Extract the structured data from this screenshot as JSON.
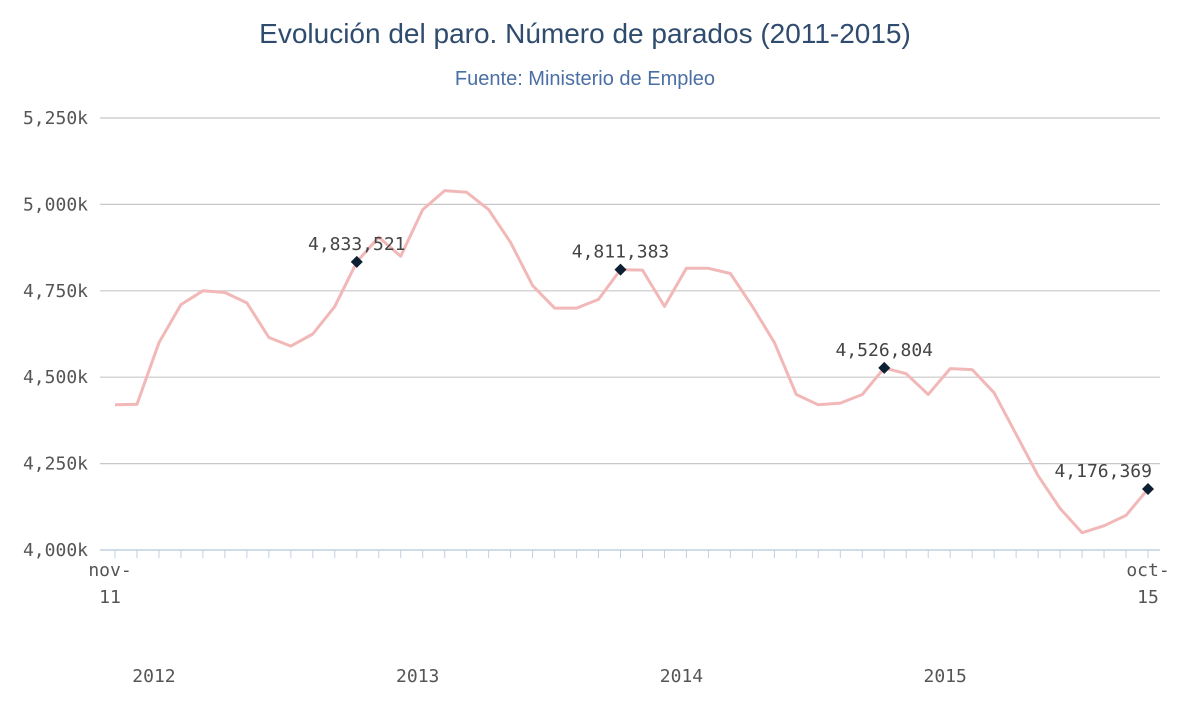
{
  "chart_data": {
    "type": "line",
    "title": "Evolución del paro. Número de parados (2011-2015)",
    "subtitle": "Fuente: Ministerio de Empleo",
    "xlabel": "",
    "ylabel": "",
    "ylim": [
      4000000,
      5250000
    ],
    "y_ticks": [
      {
        "value": 4000000,
        "label": "4,000k"
      },
      {
        "value": 4250000,
        "label": "4,250k"
      },
      {
        "value": 4500000,
        "label": "4,500k"
      },
      {
        "value": 4750000,
        "label": "4,750k"
      },
      {
        "value": 5000000,
        "label": "5,000k"
      },
      {
        "value": 5250000,
        "label": "5,250k"
      }
    ],
    "x_tick_labels": [
      {
        "label": "nov-",
        "label2": "11",
        "index": 0
      },
      {
        "label": "oct-",
        "label2": "15",
        "index": 47
      }
    ],
    "year_labels": [
      {
        "label": "2012",
        "index": 2
      },
      {
        "label": "2013",
        "index": 14
      },
      {
        "label": "2014",
        "index": 26
      },
      {
        "label": "2015",
        "index": 38
      }
    ],
    "grid": true,
    "series": [
      {
        "color": "#f2b8b8",
        "x_start": "nov-11",
        "x_end": "oct-15",
        "values": [
          4420000,
          4422000,
          4600000,
          4710000,
          4750000,
          4745000,
          4715000,
          4615000,
          4590000,
          4625000,
          4705000,
          4833521,
          4905000,
          4850000,
          4985000,
          5040000,
          5035000,
          4985000,
          4890000,
          4765000,
          4700000,
          4700000,
          4725000,
          4811383,
          4810000,
          4705000,
          4815000,
          4815000,
          4800000,
          4705000,
          4600000,
          4450000,
          4420000,
          4425000,
          4450000,
          4526804,
          4510000,
          4450000,
          4525000,
          4522000,
          4455000,
          4335000,
          4215000,
          4120000,
          4050000,
          4070000,
          4100000,
          4176369
        ]
      }
    ],
    "annotations": [
      {
        "index": 11,
        "value": 4833521,
        "label": "4,833,521"
      },
      {
        "index": 23,
        "value": 4811383,
        "label": "4,811,383"
      },
      {
        "index": 35,
        "value": 4526804,
        "label": "4,526,804"
      },
      {
        "index": 47,
        "value": 4176369,
        "label": "4,176,369"
      }
    ],
    "colors": {
      "line": "#f2b8b8",
      "marker": "#0d1f33",
      "grid": "#c8c8c8",
      "axis": "#c0d0e0",
      "title": "#2f4b6e",
      "subtitle": "#4a6fa5"
    }
  }
}
